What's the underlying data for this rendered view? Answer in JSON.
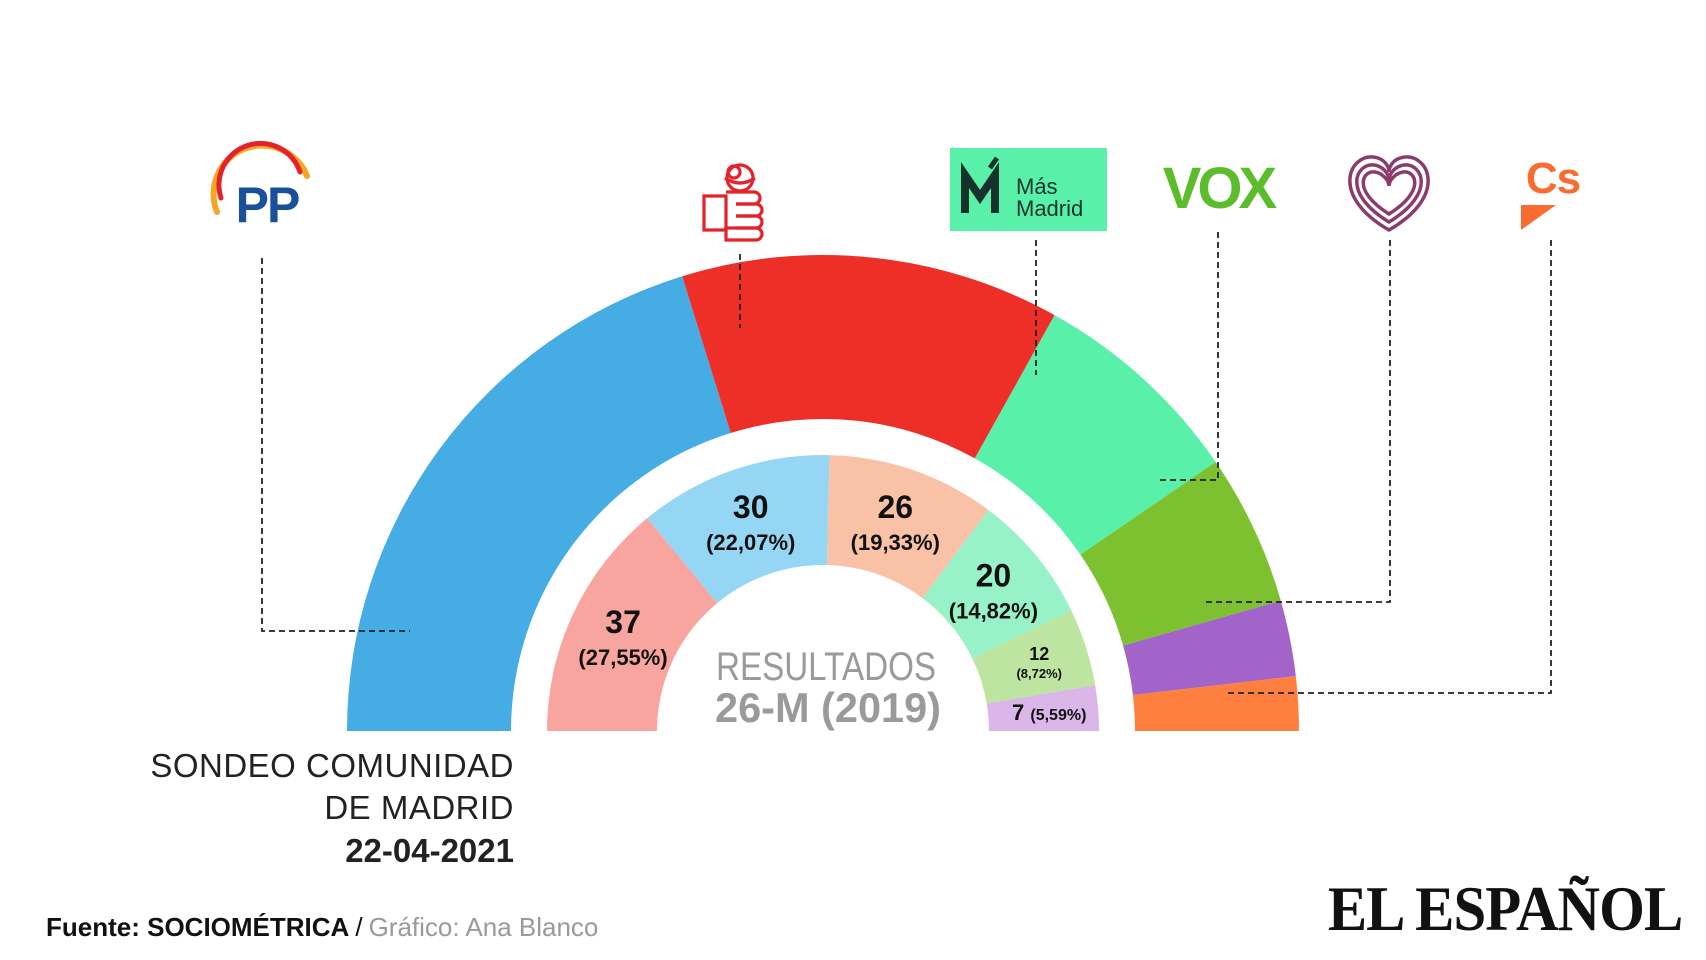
{
  "chart_data": [
    {
      "type": "pie",
      "subtype": "half-donut",
      "title": "SONDEO COMUNIDAD DE MADRID",
      "date": "22-04-2021",
      "parties": [
        "PP",
        "PSOE",
        "Más Madrid",
        "VOX",
        "Unidas Podemos",
        "Cs"
      ],
      "colors": [
        "#45ace4",
        "#ee2f28",
        "#59f0a9",
        "#7dc130",
        "#a264c9",
        "#ff7f3f"
      ],
      "values": [
        55,
        35,
        20,
        14,
        7,
        5
      ]
    },
    {
      "type": "pie",
      "subtype": "half-donut",
      "title_line1": "RESULTADOS",
      "title_line2": "26-M (2019)",
      "colors": [
        "#f9a59f",
        "#95d6f5",
        "#f9c1a5",
        "#97f2c8",
        "#bde4a0",
        "#dbb6e9"
      ],
      "labels": [
        {
          "seats": "37",
          "pct": "(27,55%)"
        },
        {
          "seats": "30",
          "pct": "(22,07%)"
        },
        {
          "seats": "26",
          "pct": "(19,33%)"
        },
        {
          "seats": "20",
          "pct": "(14,82%)"
        },
        {
          "seats": "12",
          "pct": "(8,72%)"
        },
        {
          "seats": "7",
          "pct": "(5,59%)"
        }
      ],
      "values": [
        37,
        30,
        26,
        20,
        12,
        7
      ]
    }
  ],
  "logos": {
    "pp": "PP",
    "masmadrid_line1": "Más",
    "masmadrid_line2": "Madrid",
    "vox": "VOX",
    "cs": "Cs"
  },
  "title": {
    "line1": "SONDEO COMUNIDAD",
    "line2": "DE MADRID",
    "date": "22-04-2021"
  },
  "footer": {
    "source_label": "Fuente: SOCIOMÉTRICA",
    "separator": "/",
    "credit": "Gráfico: Ana Blanco",
    "brand": "EL ESPAÑOL"
  }
}
